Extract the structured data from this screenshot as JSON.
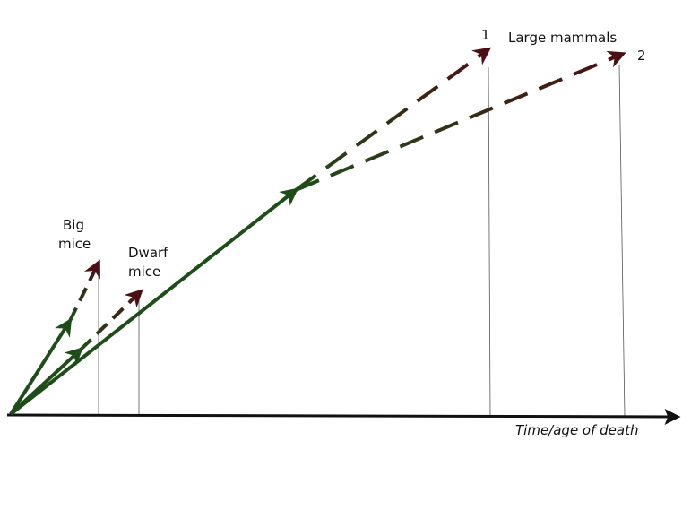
{
  "labels": {
    "big_mice": [
      "Big",
      "mice"
    ],
    "dwarf_mice": [
      "Dwarf",
      "mice"
    ],
    "marker_1": "1",
    "large_mammals": "Large mammals",
    "marker_2": "2",
    "x_axis": "Time/age of death"
  }
}
